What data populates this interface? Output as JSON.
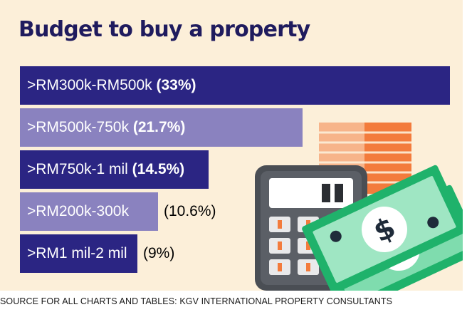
{
  "chart_data": {
    "type": "bar",
    "orientation": "horizontal",
    "title": "Budget to buy a property",
    "categories": [
      ">RM300k-RM500k",
      ">RM500k-750k",
      ">RM750k-1 mil",
      ">RM200k-300k",
      ">RM1 mil-2 mil"
    ],
    "values": [
      33,
      21.7,
      14.5,
      10.6,
      9
    ],
    "value_labels": [
      "(33%)",
      "(21.7%)",
      "(14.5%)",
      "(10.6%)",
      "(9%)"
    ],
    "colors": [
      "#2b2583",
      "#8a82bf",
      "#2b2583",
      "#8a82bf",
      "#2b2583"
    ],
    "legend": "none",
    "grid": false
  },
  "source": "SOURCE FOR ALL CHARTS AND TABLES: KGV INTERNATIONAL PROPERTY CONSULTANTS",
  "colors": {
    "background": "#fcefd9",
    "title": "#1f1b5e",
    "bar_dark": "#2b2583",
    "bar_light": "#8a82bf",
    "money_green": "#1fb26b",
    "calculator": "#4a4e54",
    "building_orange": "#f37b3c"
  },
  "icons": [
    "calculator-icon",
    "banknote-icon",
    "building-icon"
  ]
}
